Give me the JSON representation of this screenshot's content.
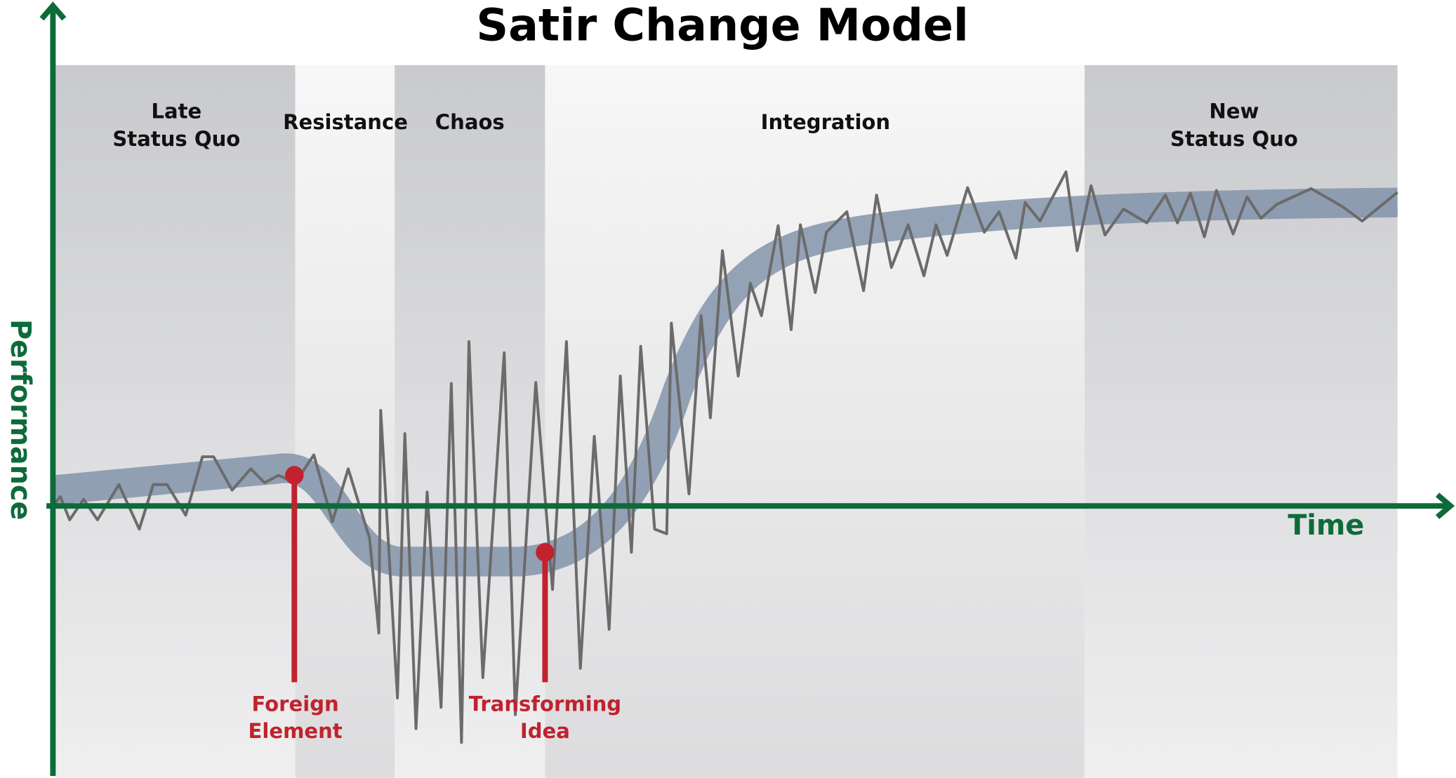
{
  "title": "Satir Change Model",
  "axes": {
    "y": "Performance",
    "x": "Time"
  },
  "phases": [
    {
      "lines": [
        "Late",
        "Status Quo"
      ]
    },
    {
      "lines": [
        "Resistance"
      ]
    },
    {
      "lines": [
        "Chaos"
      ]
    },
    {
      "lines": [
        "Integration"
      ]
    },
    {
      "lines": [
        "New",
        "Status Quo"
      ]
    }
  ],
  "events": [
    {
      "lines": [
        "Foreign",
        "Element"
      ]
    },
    {
      "lines": [
        "Transforming",
        "Idea"
      ]
    }
  ]
}
